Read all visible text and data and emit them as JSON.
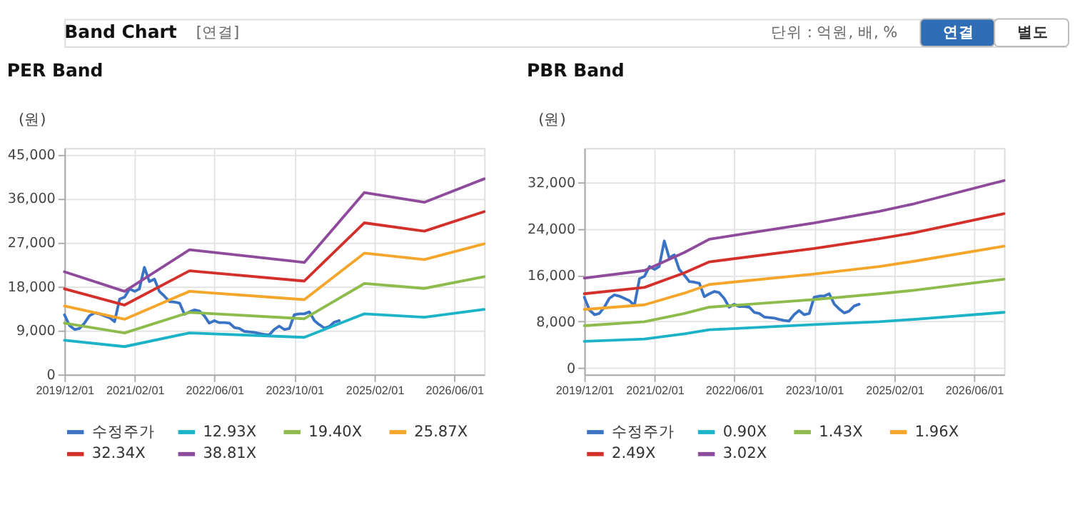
{
  "chart_data": [
    {
      "type": "line",
      "title": "PER Band",
      "ylabel": "(원)",
      "annotations": [
        "Band Chart",
        "[연결]",
        "단위 : 억원, 배, %",
        "연결",
        "별도"
      ],
      "xlim": [
        "2019-12-01",
        "2026-12-01"
      ],
      "xticks": [
        {
          "value": "2019-12-01",
          "label": "2019/12/01"
        },
        {
          "value": "2021-02-01",
          "label": "2021/02/01"
        },
        {
          "value": "2022-06-01",
          "label": "2022/06/01"
        },
        {
          "value": "2023-10-01",
          "label": "2023/10/01"
        },
        {
          "value": "2025-02-01",
          "label": "2025/02/01"
        },
        {
          "value": "2026-06-01",
          "label": "2026/06/01"
        }
      ],
      "ylim": [
        0,
        46300
      ],
      "yticks": [
        {
          "value": 0,
          "label": "0"
        },
        {
          "value": 9000,
          "label": "9,000"
        },
        {
          "value": 18000,
          "label": "18,000"
        },
        {
          "value": 27000,
          "label": "27,000"
        },
        {
          "value": 36000,
          "label": "36,000"
        },
        {
          "value": 45000,
          "label": "45,000"
        }
      ],
      "grid": true,
      "legend": "bottom",
      "marker": "none",
      "line_style": "solid",
      "series": [
        {
          "name": "수정주가",
          "color": "#3a73c3",
          "x": [
            "2019-12",
            "2020-01",
            "2020-02",
            "2020-03",
            "2020-04",
            "2020-05",
            "2020-06",
            "2020-07",
            "2020-08",
            "2020-09",
            "2020-10",
            "2020-11",
            "2020-12",
            "2021-01",
            "2021-02",
            "2021-03",
            "2021-04",
            "2021-05",
            "2021-06",
            "2021-07",
            "2021-08",
            "2021-09",
            "2021-10",
            "2021-11",
            "2021-12",
            "2022-01",
            "2022-02",
            "2022-03",
            "2022-04",
            "2022-05",
            "2022-06",
            "2022-07",
            "2022-08",
            "2022-09",
            "2022-10",
            "2022-11",
            "2022-12",
            "2023-01",
            "2023-02",
            "2023-03",
            "2023-04",
            "2023-05",
            "2023-06",
            "2023-07",
            "2023-08",
            "2023-09",
            "2023-10",
            "2023-11",
            "2023-12",
            "2024-01",
            "2024-02",
            "2024-03",
            "2024-04",
            "2024-05",
            "2024-06",
            "2024-07"
          ],
          "values": [
            12200,
            10000,
            9200,
            9400,
            10500,
            12000,
            12600,
            12400,
            12000,
            11600,
            10800,
            15400,
            15800,
            17500,
            17000,
            17500,
            21900,
            19000,
            19500,
            17000,
            16000,
            14900,
            14800,
            14600,
            12300,
            12800,
            13200,
            13000,
            12000,
            10500,
            11000,
            10600,
            10600,
            10500,
            9600,
            9400,
            8800,
            8700,
            8600,
            8400,
            8200,
            8100,
            9200,
            9900,
            9200,
            9400,
            12200,
            12400,
            12400,
            12800,
            11000,
            10200,
            9500,
            9800,
            10700,
            11000
          ]
        },
        {
          "name": "12.93X",
          "color": "#1cb3c8",
          "x": [
            "2019-12",
            "2020-12",
            "2022-01",
            "2023-12",
            "2024-12",
            "2025-12",
            "2026-12"
          ],
          "values": [
            7000,
            5700,
            8500,
            7600,
            12400,
            11700,
            13300
          ]
        },
        {
          "name": "19.40X",
          "color": "#8dbb4c",
          "x": [
            "2019-12",
            "2020-12",
            "2022-01",
            "2023-12",
            "2024-12",
            "2025-12",
            "2026-12"
          ],
          "values": [
            10500,
            8500,
            12700,
            11400,
            18600,
            17600,
            20000
          ]
        },
        {
          "name": "25.87X",
          "color": "#f5a52a",
          "x": [
            "2019-12",
            "2020-12",
            "2022-01",
            "2023-12",
            "2024-12",
            "2025-12",
            "2026-12"
          ],
          "values": [
            14000,
            11300,
            17000,
            15300,
            24800,
            23500,
            26700
          ]
        },
        {
          "name": "32.34X",
          "color": "#d4302b",
          "x": [
            "2019-12",
            "2020-12",
            "2022-01",
            "2023-12",
            "2024-12",
            "2025-12",
            "2026-12"
          ],
          "values": [
            17500,
            14200,
            21200,
            19100,
            31000,
            29300,
            33300
          ]
        },
        {
          "name": "38.81X",
          "color": "#8e4b9b",
          "x": [
            "2019-12",
            "2020-12",
            "2022-01",
            "2023-12",
            "2024-12",
            "2025-12",
            "2026-12"
          ],
          "values": [
            21000,
            17000,
            25500,
            22900,
            37200,
            35200,
            40000
          ]
        }
      ]
    },
    {
      "type": "line",
      "title": "PBR Band",
      "ylabel": "(원)",
      "xlim": [
        "2019-12-01",
        "2026-12-01"
      ],
      "xticks": [
        {
          "value": "2019-12-01",
          "label": "2019/12/01"
        },
        {
          "value": "2021-02-01",
          "label": "2021/02/01"
        },
        {
          "value": "2022-06-01",
          "label": "2022/06/01"
        },
        {
          "value": "2023-10-01",
          "label": "2023/10/01"
        },
        {
          "value": "2025-02-01",
          "label": "2025/02/01"
        },
        {
          "value": "2026-06-01",
          "label": "2026/06/01"
        }
      ],
      "ylim": [
        -1100,
        37900
      ],
      "yticks": [
        {
          "value": 0,
          "label": "0"
        },
        {
          "value": 8000,
          "label": "8,000"
        },
        {
          "value": 16000,
          "label": "16,000"
        },
        {
          "value": 24000,
          "label": "24,000"
        },
        {
          "value": 32000,
          "label": "32,000"
        }
      ],
      "grid": true,
      "legend": "bottom",
      "marker": "none",
      "line_style": "solid",
      "series": [
        {
          "name": "수정주가",
          "color": "#3a73c3",
          "x": [
            "2019-12",
            "2020-01",
            "2020-02",
            "2020-03",
            "2020-04",
            "2020-05",
            "2020-06",
            "2020-07",
            "2020-08",
            "2020-09",
            "2020-10",
            "2020-11",
            "2020-12",
            "2021-01",
            "2021-02",
            "2021-03",
            "2021-04",
            "2021-05",
            "2021-06",
            "2021-07",
            "2021-08",
            "2021-09",
            "2021-10",
            "2021-11",
            "2021-12",
            "2022-01",
            "2022-02",
            "2022-03",
            "2022-04",
            "2022-05",
            "2022-06",
            "2022-07",
            "2022-08",
            "2022-09",
            "2022-10",
            "2022-11",
            "2022-12",
            "2023-01",
            "2023-02",
            "2023-03",
            "2023-04",
            "2023-05",
            "2023-06",
            "2023-07",
            "2023-08",
            "2023-09",
            "2023-10",
            "2023-11",
            "2023-12",
            "2024-01",
            "2024-02",
            "2024-03",
            "2024-04",
            "2024-05",
            "2024-06",
            "2024-07"
          ],
          "values": [
            12200,
            10000,
            9200,
            9400,
            10500,
            12000,
            12600,
            12400,
            12000,
            11600,
            10800,
            15400,
            15800,
            17500,
            17000,
            17500,
            21900,
            19000,
            19500,
            17000,
            16000,
            14900,
            14800,
            14600,
            12300,
            12800,
            13200,
            13000,
            12000,
            10500,
            11000,
            10600,
            10600,
            10500,
            9600,
            9400,
            8800,
            8700,
            8600,
            8400,
            8200,
            8100,
            9200,
            9900,
            9200,
            9400,
            12200,
            12400,
            12400,
            12800,
            11000,
            10200,
            9500,
            9800,
            10700,
            11000
          ]
        },
        {
          "name": "0.90X",
          "color": "#1cb3c8",
          "x": [
            "2019-12",
            "2020-12",
            "2021-08",
            "2022-01",
            "2023-10",
            "2024-11",
            "2025-06",
            "2026-12"
          ],
          "values": [
            4600,
            5000,
            5900,
            6600,
            7500,
            8000,
            8400,
            9600
          ]
        },
        {
          "name": "1.43X",
          "color": "#8dbb4c",
          "x": [
            "2019-12",
            "2020-12",
            "2021-08",
            "2022-01",
            "2023-10",
            "2024-11",
            "2025-06",
            "2026-12"
          ],
          "values": [
            7300,
            8000,
            9400,
            10500,
            11800,
            12800,
            13400,
            15300
          ]
        },
        {
          "name": "1.96X",
          "color": "#f5a52a",
          "x": [
            "2019-12",
            "2020-12",
            "2021-08",
            "2022-01",
            "2023-10",
            "2024-11",
            "2025-06",
            "2026-12"
          ],
          "values": [
            10100,
            10900,
            12900,
            14400,
            16200,
            17500,
            18400,
            21000
          ]
        },
        {
          "name": "2.49X",
          "color": "#d4302b",
          "x": [
            "2019-12",
            "2020-12",
            "2021-08",
            "2022-01",
            "2023-10",
            "2024-11",
            "2025-06",
            "2026-12"
          ],
          "values": [
            12800,
            13900,
            16400,
            18300,
            20600,
            22300,
            23300,
            26600
          ]
        },
        {
          "name": "3.02X",
          "color": "#8e4b9b",
          "x": [
            "2019-12",
            "2020-12",
            "2021-08",
            "2022-01",
            "2023-10",
            "2024-11",
            "2025-06",
            "2026-12"
          ],
          "values": [
            15500,
            16800,
            19900,
            22200,
            25000,
            27000,
            28300,
            32300
          ]
        }
      ]
    }
  ]
}
